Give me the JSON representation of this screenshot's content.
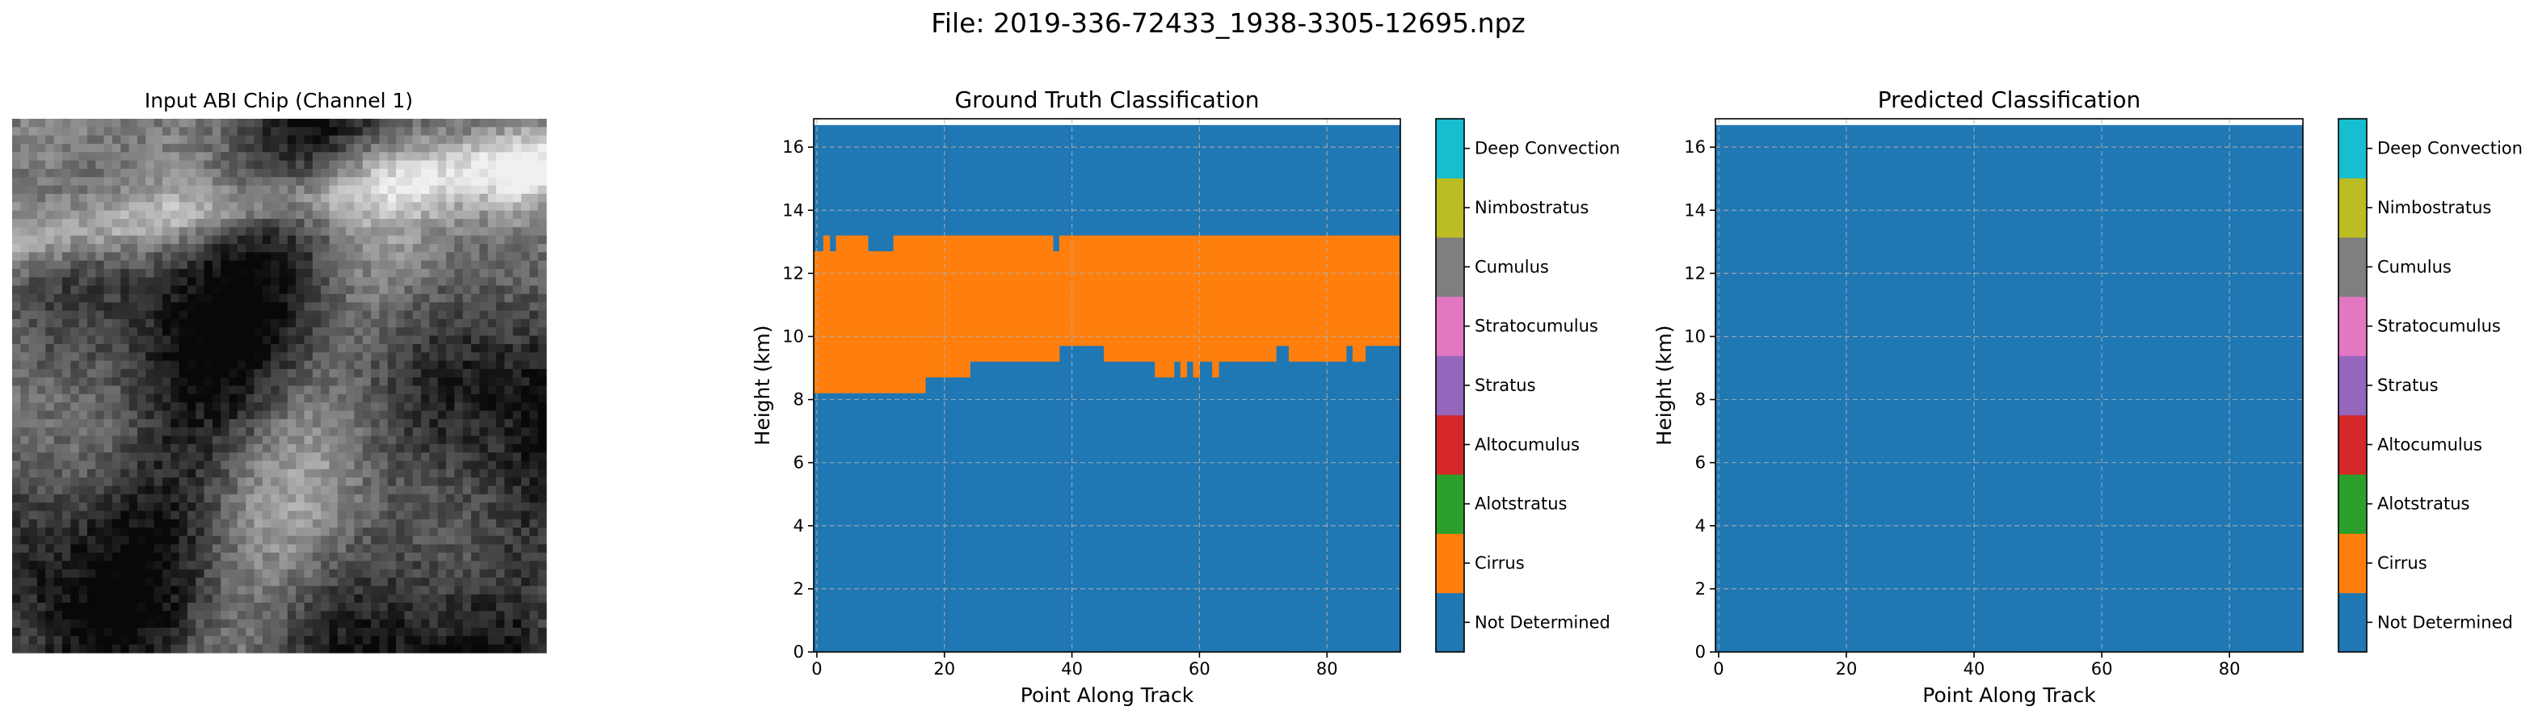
{
  "figure": {
    "suptitle": "File: 2019-336-72433_1938-3305-12695.npz"
  },
  "input_panel": {
    "title": "Input ABI Chip (Channel 1)",
    "image_description_icon": "grayscale-satellite-image"
  },
  "colorbar": {
    "classes": [
      {
        "label": "Not Determined",
        "color": "#1f77b4"
      },
      {
        "label": "Cirrus",
        "color": "#ff7f0e"
      },
      {
        "label": "Alotstratus",
        "color": "#2ca02c"
      },
      {
        "label": "Altocumulus",
        "color": "#d62728"
      },
      {
        "label": "Stratus",
        "color": "#9467bd"
      },
      {
        "label": "Stratocumulus",
        "color": "#e377c2"
      },
      {
        "label": "Cumulus",
        "color": "#7f7f7f"
      },
      {
        "label": "Nimbostratus",
        "color": "#bcbd22"
      },
      {
        "label": "Deep Convection",
        "color": "#17becf"
      }
    ]
  },
  "chart_data": [
    {
      "type": "heatmap",
      "title": "Ground Truth Classification",
      "xlabel": "Point Along Track",
      "ylabel": "Height (km)",
      "xlim": [
        -0.5,
        91.5
      ],
      "ylim": [
        0,
        16.9
      ],
      "xticks": [
        0,
        20,
        40,
        60,
        80
      ],
      "yticks": [
        0,
        2,
        4,
        6,
        8,
        10,
        12,
        14,
        16
      ],
      "grid": true,
      "data_top_km": 16.7,
      "background_class": "Not Determined",
      "layer_class": "Cirrus",
      "layer_columns": [
        {
          "x": [
            0,
            1
          ],
          "bottom": 8.2,
          "top": 12.7
        },
        {
          "x": [
            1,
            2
          ],
          "bottom": 8.2,
          "top": 13.2
        },
        {
          "x": [
            2,
            3
          ],
          "bottom": 8.2,
          "top": 12.7
        },
        {
          "x": [
            3,
            8
          ],
          "bottom": 8.2,
          "top": 13.2
        },
        {
          "x": [
            8,
            12
          ],
          "bottom": 8.2,
          "top": 12.7
        },
        {
          "x": [
            12,
            17
          ],
          "bottom": 8.2,
          "top": 13.2
        },
        {
          "x": [
            17,
            24
          ],
          "bottom": 8.7,
          "top": 13.2
        },
        {
          "x": [
            24,
            37
          ],
          "bottom": 9.2,
          "top": 13.2
        },
        {
          "x": [
            37,
            38
          ],
          "bottom": 9.2,
          "top": 12.7
        },
        {
          "x": [
            38,
            39
          ],
          "bottom": 9.7,
          "top": 13.2
        },
        {
          "x": [
            39,
            45
          ],
          "bottom": 9.7,
          "top": 13.2
        },
        {
          "x": [
            45,
            53
          ],
          "bottom": 9.2,
          "top": 13.2
        },
        {
          "x": [
            53,
            56
          ],
          "bottom": 8.7,
          "top": 13.2
        },
        {
          "x": [
            56,
            57
          ],
          "bottom": 9.2,
          "top": 13.2
        },
        {
          "x": [
            57,
            58
          ],
          "bottom": 8.7,
          "top": 13.2
        },
        {
          "x": [
            58,
            59
          ],
          "bottom": 9.2,
          "top": 13.2
        },
        {
          "x": [
            59,
            60
          ],
          "bottom": 8.7,
          "top": 13.2
        },
        {
          "x": [
            60,
            62
          ],
          "bottom": 9.2,
          "top": 13.2
        },
        {
          "x": [
            62,
            63
          ],
          "bottom": 8.7,
          "top": 13.2
        },
        {
          "x": [
            63,
            72
          ],
          "bottom": 9.2,
          "top": 13.2
        },
        {
          "x": [
            72,
            74
          ],
          "bottom": 9.7,
          "top": 13.2
        },
        {
          "x": [
            74,
            83
          ],
          "bottom": 9.2,
          "top": 13.2
        },
        {
          "x": [
            83,
            84
          ],
          "bottom": 9.7,
          "top": 13.2
        },
        {
          "x": [
            84,
            86
          ],
          "bottom": 9.2,
          "top": 13.2
        },
        {
          "x": [
            86,
            91
          ],
          "bottom": 9.7,
          "top": 13.2
        }
      ]
    },
    {
      "type": "heatmap",
      "title": "Predicted Classification",
      "xlabel": "Point Along Track",
      "ylabel": "Height (km)",
      "xlim": [
        -0.5,
        91.5
      ],
      "ylim": [
        0,
        16.9
      ],
      "xticks": [
        0,
        20,
        40,
        60,
        80
      ],
      "yticks": [
        0,
        2,
        4,
        6,
        8,
        10,
        12,
        14,
        16
      ],
      "grid": true,
      "data_top_km": 16.7,
      "background_class": "Not Determined",
      "layer_class": "Cirrus",
      "layer_columns": []
    }
  ]
}
